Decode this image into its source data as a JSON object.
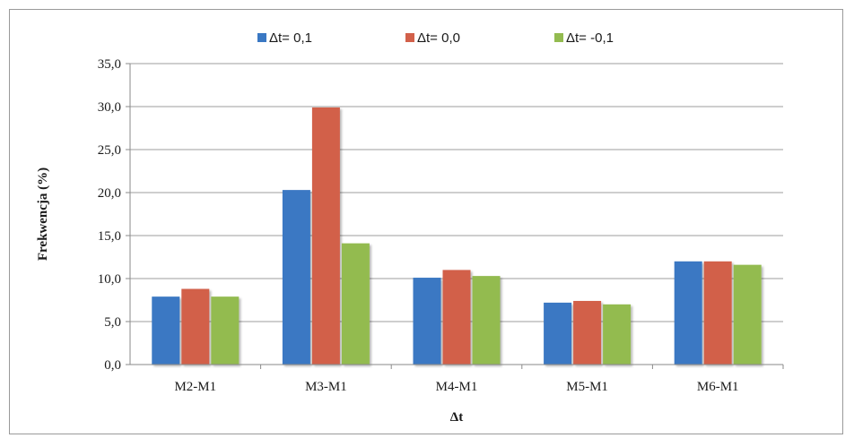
{
  "chart_data": {
    "type": "bar",
    "title": "",
    "xlabel": "Δt",
    "ylabel": "Frekwencja (%)",
    "ylim": [
      0,
      35
    ],
    "ytick_step": 5,
    "ytick_labels": [
      "0,0",
      "5,0",
      "10,0",
      "15,0",
      "20,0",
      "25,0",
      "30,0",
      "35,0"
    ],
    "categories": [
      "M2-M1",
      "M3-M1",
      "M4-M1",
      "M5-M1",
      "M6-M1"
    ],
    "series": [
      {
        "name": "Δt= 0,1",
        "color": "#3a78c3",
        "values": [
          7.9,
          20.3,
          10.1,
          7.2,
          12.0
        ]
      },
      {
        "name": "Δt= 0,0",
        "color": "#d2604a",
        "values": [
          8.8,
          29.9,
          11.0,
          7.4,
          12.0
        ]
      },
      {
        "name": "Δt= -0,1",
        "color": "#93bb50",
        "values": [
          7.9,
          14.1,
          10.3,
          7.0,
          11.6
        ]
      }
    ],
    "grid": true,
    "legend_position": "top"
  }
}
